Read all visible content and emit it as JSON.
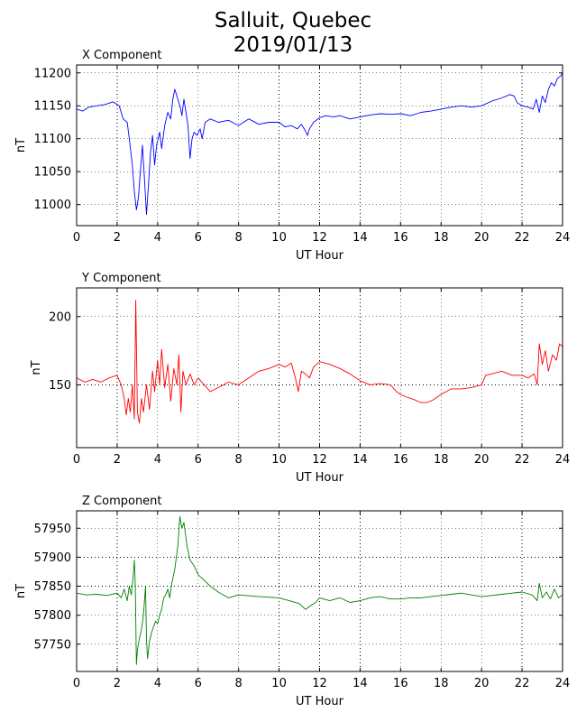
{
  "title_line1": "Salluit, Quebec",
  "title_line2": "2019/01/13",
  "chart_data": [
    {
      "type": "line",
      "panel_title": "X Component",
      "xlabel": "UT Hour",
      "ylabel": "nT",
      "color": "#0000ff",
      "xlim": [
        0,
        24
      ],
      "ylim": [
        10968,
        11212
      ],
      "xticks": [
        0,
        2,
        4,
        6,
        8,
        10,
        12,
        14,
        16,
        18,
        20,
        22,
        24
      ],
      "yticks": [
        11000,
        11050,
        11100,
        11150,
        11200
      ],
      "grid": true,
      "points": [
        [
          0,
          11145
        ],
        [
          0.3,
          11142
        ],
        [
          0.6,
          11148
        ],
        [
          1.0,
          11150
        ],
        [
          1.4,
          11152
        ],
        [
          1.8,
          11156
        ],
        [
          2.1,
          11150
        ],
        [
          2.3,
          11130
        ],
        [
          2.5,
          11125
        ],
        [
          2.6,
          11100
        ],
        [
          2.75,
          11060
        ],
        [
          2.85,
          11020
        ],
        [
          2.95,
          10992
        ],
        [
          3.05,
          11010
        ],
        [
          3.15,
          11050
        ],
        [
          3.25,
          11090
        ],
        [
          3.35,
          11040
        ],
        [
          3.45,
          10985
        ],
        [
          3.55,
          11030
        ],
        [
          3.65,
          11080
        ],
        [
          3.75,
          11105
        ],
        [
          3.85,
          11060
        ],
        [
          3.95,
          11090
        ],
        [
          4.1,
          11110
        ],
        [
          4.2,
          11085
        ],
        [
          4.35,
          11120
        ],
        [
          4.5,
          11140
        ],
        [
          4.65,
          11130
        ],
        [
          4.75,
          11160
        ],
        [
          4.85,
          11175
        ],
        [
          4.95,
          11165
        ],
        [
          5.1,
          11150
        ],
        [
          5.2,
          11135
        ],
        [
          5.3,
          11160
        ],
        [
          5.4,
          11140
        ],
        [
          5.5,
          11120
        ],
        [
          5.6,
          11070
        ],
        [
          5.7,
          11100
        ],
        [
          5.8,
          11110
        ],
        [
          5.95,
          11105
        ],
        [
          6.1,
          11115
        ],
        [
          6.2,
          11100
        ],
        [
          6.35,
          11125
        ],
        [
          6.6,
          11130
        ],
        [
          7.0,
          11125
        ],
        [
          7.5,
          11128
        ],
        [
          8.0,
          11120
        ],
        [
          8.5,
          11130
        ],
        [
          9.0,
          11122
        ],
        [
          9.5,
          11125
        ],
        [
          10.0,
          11125
        ],
        [
          10.3,
          11118
        ],
        [
          10.6,
          11120
        ],
        [
          10.9,
          11115
        ],
        [
          11.1,
          11122
        ],
        [
          11.3,
          11112
        ],
        [
          11.4,
          11105
        ],
        [
          11.5,
          11115
        ],
        [
          11.7,
          11125
        ],
        [
          12.0,
          11132
        ],
        [
          12.3,
          11135
        ],
        [
          12.7,
          11133
        ],
        [
          13.0,
          11135
        ],
        [
          13.5,
          11130
        ],
        [
          14.0,
          11133
        ],
        [
          14.5,
          11136
        ],
        [
          15.0,
          11138
        ],
        [
          15.5,
          11137
        ],
        [
          16.0,
          11138
        ],
        [
          16.5,
          11135
        ],
        [
          17.0,
          11140
        ],
        [
          17.5,
          11142
        ],
        [
          18.0,
          11145
        ],
        [
          18.5,
          11148
        ],
        [
          19.0,
          11150
        ],
        [
          19.5,
          11148
        ],
        [
          20.0,
          11150
        ],
        [
          20.5,
          11157
        ],
        [
          21.0,
          11162
        ],
        [
          21.4,
          11167
        ],
        [
          21.6,
          11165
        ],
        [
          21.75,
          11155
        ],
        [
          22.0,
          11150
        ],
        [
          22.3,
          11148
        ],
        [
          22.55,
          11145
        ],
        [
          22.7,
          11160
        ],
        [
          22.85,
          11140
        ],
        [
          23.0,
          11165
        ],
        [
          23.15,
          11155
        ],
        [
          23.3,
          11175
        ],
        [
          23.45,
          11185
        ],
        [
          23.6,
          11180
        ],
        [
          23.75,
          11192
        ],
        [
          23.9,
          11195
        ],
        [
          24,
          11200
        ]
      ]
    },
    {
      "type": "line",
      "panel_title": "Y Component",
      "xlabel": "UT Hour",
      "ylabel": "nT",
      "color": "#ff0000",
      "xlim": [
        0,
        24
      ],
      "ylim": [
        104,
        221
      ],
      "xticks": [
        0,
        2,
        4,
        6,
        8,
        10,
        12,
        14,
        16,
        18,
        20,
        22,
        24
      ],
      "yticks": [
        150,
        200
      ],
      "grid": true,
      "points": [
        [
          0,
          155
        ],
        [
          0.4,
          152
        ],
        [
          0.8,
          154
        ],
        [
          1.2,
          152
        ],
        [
          1.6,
          155
        ],
        [
          2.0,
          157
        ],
        [
          2.2,
          150
        ],
        [
          2.35,
          140
        ],
        [
          2.45,
          128
        ],
        [
          2.55,
          140
        ],
        [
          2.65,
          130
        ],
        [
          2.75,
          150
        ],
        [
          2.85,
          125
        ],
        [
          2.92,
          212
        ],
        [
          3.0,
          130
        ],
        [
          3.1,
          122
        ],
        [
          3.2,
          140
        ],
        [
          3.3,
          130
        ],
        [
          3.45,
          150
        ],
        [
          3.6,
          132
        ],
        [
          3.75,
          160
        ],
        [
          3.85,
          145
        ],
        [
          4.0,
          168
        ],
        [
          4.1,
          150
        ],
        [
          4.2,
          176
        ],
        [
          4.35,
          148
        ],
        [
          4.5,
          165
        ],
        [
          4.65,
          138
        ],
        [
          4.8,
          162
        ],
        [
          4.95,
          150
        ],
        [
          5.05,
          172
        ],
        [
          5.15,
          130
        ],
        [
          5.25,
          160
        ],
        [
          5.4,
          150
        ],
        [
          5.6,
          158
        ],
        [
          5.8,
          150
        ],
        [
          6.0,
          155
        ],
        [
          6.3,
          150
        ],
        [
          6.6,
          145
        ],
        [
          7.0,
          148
        ],
        [
          7.5,
          152
        ],
        [
          8.0,
          150
        ],
        [
          8.5,
          155
        ],
        [
          9.0,
          160
        ],
        [
          9.5,
          162
        ],
        [
          10.0,
          165
        ],
        [
          10.3,
          163
        ],
        [
          10.6,
          166
        ],
        [
          10.8,
          155
        ],
        [
          10.95,
          145
        ],
        [
          11.1,
          160
        ],
        [
          11.3,
          158
        ],
        [
          11.5,
          155
        ],
        [
          11.7,
          163
        ],
        [
          12.0,
          167
        ],
        [
          12.5,
          165
        ],
        [
          13.0,
          162
        ],
        [
          13.5,
          158
        ],
        [
          14.0,
          153
        ],
        [
          14.5,
          150
        ],
        [
          15.0,
          151
        ],
        [
          15.5,
          150
        ],
        [
          15.8,
          145
        ],
        [
          16.0,
          143
        ],
        [
          16.3,
          141
        ],
        [
          16.7,
          139
        ],
        [
          17.0,
          137
        ],
        [
          17.3,
          137
        ],
        [
          17.6,
          139
        ],
        [
          18.0,
          143
        ],
        [
          18.5,
          147
        ],
        [
          19.0,
          147
        ],
        [
          19.5,
          148
        ],
        [
          20.0,
          150
        ],
        [
          20.2,
          157
        ],
        [
          20.5,
          158
        ],
        [
          21.0,
          160
        ],
        [
          21.5,
          157
        ],
        [
          22.0,
          157
        ],
        [
          22.3,
          155
        ],
        [
          22.6,
          158
        ],
        [
          22.75,
          150
        ],
        [
          22.85,
          180
        ],
        [
          23.0,
          165
        ],
        [
          23.15,
          175
        ],
        [
          23.3,
          160
        ],
        [
          23.5,
          172
        ],
        [
          23.7,
          168
        ],
        [
          23.85,
          180
        ],
        [
          24,
          178
        ]
      ]
    },
    {
      "type": "line",
      "panel_title": "Z Component",
      "xlabel": "UT Hour",
      "ylabel": "nT",
      "color": "#008000",
      "xlim": [
        0,
        24
      ],
      "ylim": [
        57703,
        57980
      ],
      "xticks": [
        0,
        2,
        4,
        6,
        8,
        10,
        12,
        14,
        16,
        18,
        20,
        22,
        24
      ],
      "yticks": [
        57750,
        57800,
        57850,
        57900,
        57950
      ],
      "grid": true,
      "points": [
        [
          0,
          57838
        ],
        [
          0.5,
          57835
        ],
        [
          1.0,
          57836
        ],
        [
          1.5,
          57834
        ],
        [
          2.0,
          57838
        ],
        [
          2.2,
          57830
        ],
        [
          2.35,
          57845
        ],
        [
          2.5,
          57825
        ],
        [
          2.6,
          57850
        ],
        [
          2.7,
          57835
        ],
        [
          2.8,
          57870
        ],
        [
          2.85,
          57895
        ],
        [
          2.9,
          57850
        ],
        [
          2.95,
          57715
        ],
        [
          3.0,
          57740
        ],
        [
          3.1,
          57760
        ],
        [
          3.2,
          57775
        ],
        [
          3.3,
          57800
        ],
        [
          3.4,
          57850
        ],
        [
          3.45,
          57760
        ],
        [
          3.5,
          57725
        ],
        [
          3.6,
          57755
        ],
        [
          3.7,
          57770
        ],
        [
          3.8,
          57780
        ],
        [
          3.9,
          57790
        ],
        [
          4.0,
          57785
        ],
        [
          4.1,
          57800
        ],
        [
          4.2,
          57810
        ],
        [
          4.3,
          57830
        ],
        [
          4.4,
          57835
        ],
        [
          4.5,
          57845
        ],
        [
          4.6,
          57830
        ],
        [
          4.7,
          57855
        ],
        [
          4.85,
          57880
        ],
        [
          5.0,
          57920
        ],
        [
          5.1,
          57970
        ],
        [
          5.2,
          57950
        ],
        [
          5.3,
          57960
        ],
        [
          5.45,
          57920
        ],
        [
          5.6,
          57895
        ],
        [
          5.8,
          57885
        ],
        [
          6.0,
          57870
        ],
        [
          6.3,
          57860
        ],
        [
          6.6,
          57850
        ],
        [
          7.0,
          57840
        ],
        [
          7.5,
          57830
        ],
        [
          8.0,
          57835
        ],
        [
          9.0,
          57832
        ],
        [
          10.0,
          57830
        ],
        [
          10.5,
          57825
        ],
        [
          11.0,
          57820
        ],
        [
          11.3,
          57810
        ],
        [
          11.5,
          57815
        ],
        [
          11.8,
          57822
        ],
        [
          12.0,
          57830
        ],
        [
          12.5,
          57825
        ],
        [
          13.0,
          57830
        ],
        [
          13.5,
          57822
        ],
        [
          14.0,
          57825
        ],
        [
          14.5,
          57830
        ],
        [
          15.0,
          57832
        ],
        [
          15.5,
          57828
        ],
        [
          16.0,
          57828
        ],
        [
          16.5,
          57830
        ],
        [
          17.0,
          57830
        ],
        [
          17.5,
          57832
        ],
        [
          18.0,
          57834
        ],
        [
          18.5,
          57836
        ],
        [
          19.0,
          57838
        ],
        [
          19.5,
          57835
        ],
        [
          20.0,
          57832
        ],
        [
          20.5,
          57834
        ],
        [
          21.0,
          57836
        ],
        [
          21.5,
          57838
        ],
        [
          22.0,
          57840
        ],
        [
          22.5,
          57835
        ],
        [
          22.75,
          57825
        ],
        [
          22.85,
          57855
        ],
        [
          23.0,
          57830
        ],
        [
          23.2,
          57840
        ],
        [
          23.4,
          57828
        ],
        [
          23.6,
          57845
        ],
        [
          23.8,
          57830
        ],
        [
          24,
          57835
        ]
      ]
    }
  ]
}
